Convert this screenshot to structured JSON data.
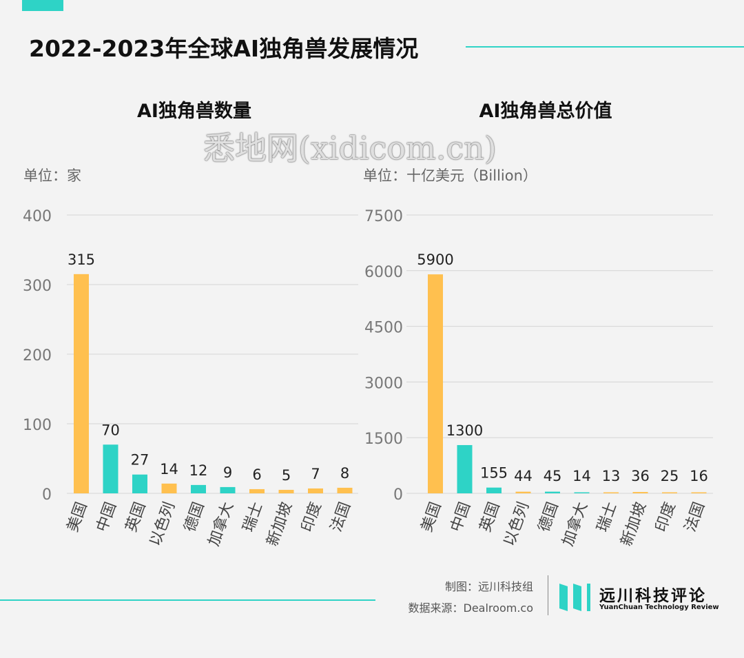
{
  "title": "2022-2023年全球AI独角兽发展情况",
  "colors": {
    "accent": "#2ed3c6",
    "us": "#ffc04f",
    "other": "#ffc04f"
  },
  "chart_data": [
    {
      "type": "bar",
      "title": "AI独角兽数量",
      "unit_label": "单位：家",
      "ylim": [
        0,
        400
      ],
      "yticks": [
        0,
        100,
        200,
        300,
        400
      ],
      "categories": [
        "美国",
        "中国",
        "英国",
        "以色列",
        "德国",
        "加拿大",
        "瑞士",
        "新加坡",
        "印度",
        "法国"
      ],
      "values": [
        315,
        70,
        27,
        14,
        12,
        9,
        6,
        5,
        7,
        8
      ],
      "colors": [
        "#ffc04f",
        "#2ed3c6",
        "#2ed3c6",
        "#ffc04f",
        "#2ed3c6",
        "#2ed3c6",
        "#ffc04f",
        "#ffc04f",
        "#ffc04f",
        "#ffc04f"
      ]
    },
    {
      "type": "bar",
      "title": "AI独角兽总价值",
      "unit_label": "单位：十亿美元（Billion）",
      "ylim": [
        0,
        7500
      ],
      "yticks": [
        0,
        1500,
        3000,
        4500,
        6000,
        7500
      ],
      "categories": [
        "美国",
        "中国",
        "英国",
        "以色列",
        "德国",
        "加拿大",
        "瑞士",
        "新加坡",
        "印度",
        "法国"
      ],
      "values": [
        5900,
        1300,
        155,
        44,
        45,
        14,
        13,
        36,
        25,
        16
      ],
      "colors": [
        "#ffc04f",
        "#2ed3c6",
        "#2ed3c6",
        "#ffc04f",
        "#2ed3c6",
        "#2ed3c6",
        "#ffc04f",
        "#ffc04f",
        "#ffc04f",
        "#ffc04f"
      ]
    }
  ],
  "footer": {
    "made_by": "制图：远川科技组",
    "source": "数据来源：Dealroom.co"
  },
  "logo": {
    "cn": "远川科技评论",
    "en": "YuanChuan Technology Review"
  },
  "watermark": "悉地网(xidicom.cn)"
}
